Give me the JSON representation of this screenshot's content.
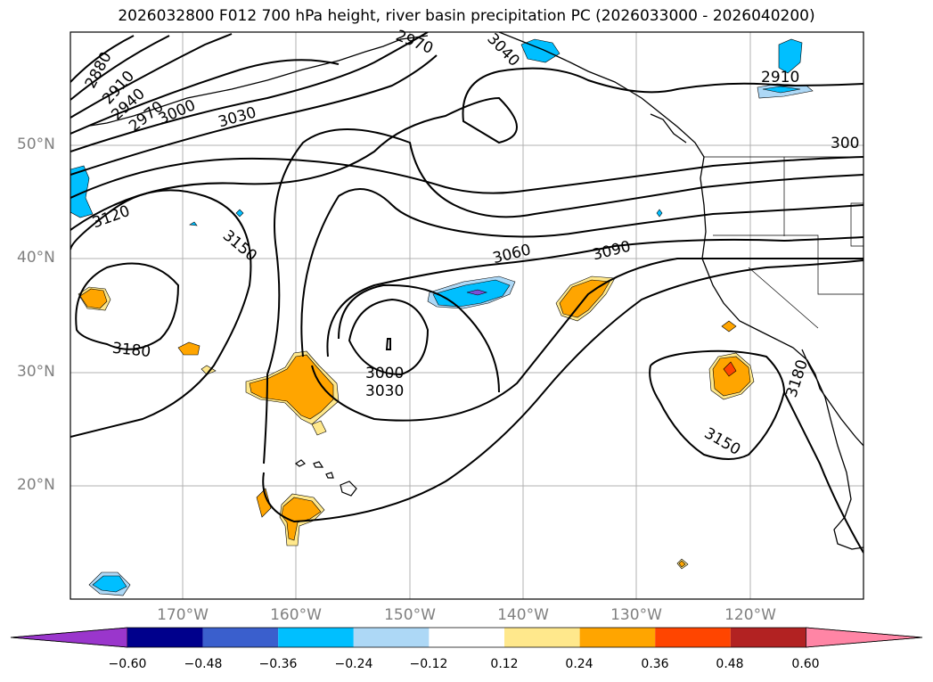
{
  "title": "2026032800 F012 700 hPa height, river basin precipitation PC (2026033000 - 2026040200)",
  "latitude_labels": [
    "50°N",
    "40°N",
    "30°N",
    "20°N"
  ],
  "longitude_labels": [
    "170°W",
    "160°W",
    "150°W",
    "140°W",
    "130°W",
    "120°W"
  ],
  "contour_labels": [
    "2880",
    "2910",
    "2940",
    "2970",
    "3000",
    "3030",
    "3120",
    "3150",
    "3180",
    "3000",
    "3030",
    "3060",
    "3090",
    "3150",
    "3180",
    "2970",
    "3040",
    "2910",
    "300"
  ],
  "colorbar": {
    "tick_labels": [
      "−0.60",
      "−0.48",
      "−0.36",
      "−0.24",
      "−0.12",
      "0.12",
      "0.24",
      "0.36",
      "0.48",
      "0.60"
    ],
    "colors": [
      "#9a36cc",
      "#00008c",
      "#3a5fcd",
      "#00bfff",
      "#add8f6",
      "#ffffff",
      "#ffe88c",
      "#ffa500",
      "#ff4500",
      "#b22222",
      "#ff85a5"
    ]
  },
  "shading_colors": {
    "light_blue": "#add8f6",
    "blue": "#00bfff",
    "purple": "#7b4fd6",
    "yellow": "#ffe88c",
    "orange": "#ffa500",
    "red": "#ff4500"
  }
}
